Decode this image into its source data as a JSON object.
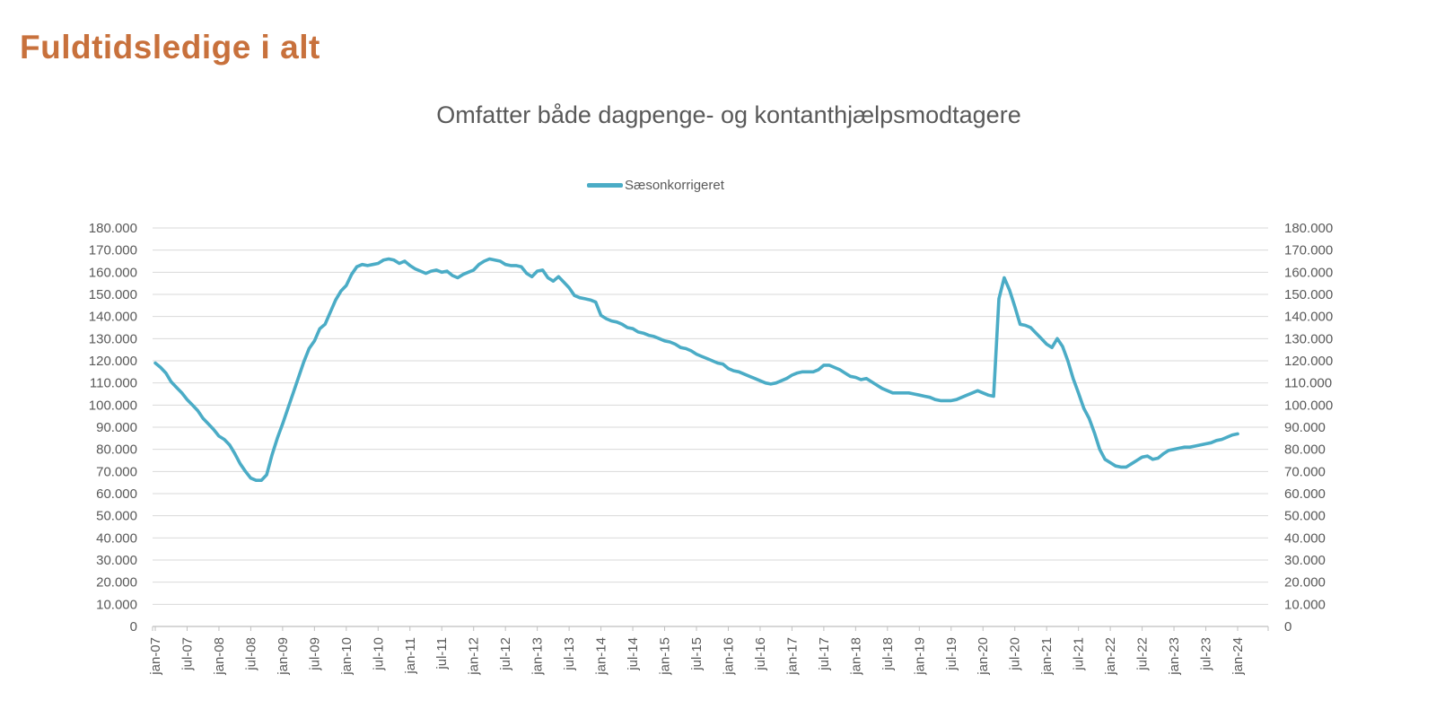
{
  "page": {
    "title": "Fuldtidsledige i alt"
  },
  "chart": {
    "subtitle": "Omfatter både dagpenge- og kontanthjælpsmodtagere",
    "legend": {
      "label": "Sæsonkorrigeret",
      "color": "#4BACC6"
    }
  },
  "chart_data": {
    "type": "line",
    "title": "Omfatter både dagpenge- og kontanthjælpsmodtagere",
    "xlabel": "",
    "ylabel": "",
    "ylim": [
      0,
      180000
    ],
    "y_tick_step": 10000,
    "y_axis_sides": "both",
    "grid": "horizontal",
    "legend_position": "top-center",
    "x_label_rotation": -90,
    "x_tick_labels": [
      "jan-07",
      "jul-07",
      "jan-08",
      "jul-08",
      "jan-09",
      "jul-09",
      "jan-10",
      "jul-10",
      "jan-11",
      "jul-11",
      "jan-12",
      "jul-12",
      "jan-13",
      "jul-13",
      "jan-14",
      "jul-14",
      "jan-15",
      "jul-15",
      "jan-16",
      "jul-16",
      "jan-17",
      "jul-17",
      "jan-18",
      "jul-18",
      "jan-19",
      "jul-19",
      "jan-20",
      "jul-20",
      "jan-21",
      "jul-21",
      "jan-22",
      "jul-22",
      "jan-23",
      "jul-23",
      "jan-24"
    ],
    "y_tick_labels": [
      "180.000",
      "170.000",
      "160.000",
      "150.000",
      "140.000",
      "130.000",
      "120.000",
      "110.000",
      "100.000",
      "90.000",
      "80.000",
      "70.000",
      "60.000",
      "50.000",
      "40.000",
      "30.000",
      "20.000",
      "10.000",
      "0"
    ],
    "colors": {
      "line": "#4BACC6",
      "text": "#595959",
      "grid": "#D9D9D9",
      "axis": "#BFBFBF",
      "title": "#C8713C"
    },
    "series": [
      {
        "name": "Sæsonkorrigeret",
        "color": "#4BACC6",
        "frequency": "monthly",
        "start_month": "jan-07",
        "end_month": "jan-24",
        "values": [
          119000,
          117000,
          114500,
          110500,
          108000,
          105500,
          102500,
          100000,
          97500,
          94000,
          91500,
          89000,
          86000,
          84500,
          82000,
          78000,
          73500,
          70000,
          67000,
          66000,
          66000,
          68500,
          77500,
          85000,
          91500,
          98500,
          105500,
          112500,
          119500,
          125500,
          129000,
          134500,
          136500,
          142000,
          147500,
          151500,
          154000,
          159000,
          162500,
          163500,
          163000,
          163500,
          164000,
          165500,
          166000,
          165500,
          164000,
          165000,
          163000,
          161500,
          160500,
          159500,
          160500,
          161000,
          160000,
          160500,
          158500,
          157500,
          159000,
          160000,
          161000,
          163500,
          165000,
          166000,
          165500,
          165000,
          163500,
          163000,
          163000,
          162500,
          159500,
          158000,
          160500,
          161000,
          157500,
          156000,
          158000,
          155500,
          153000,
          149500,
          148500,
          148000,
          147500,
          146500,
          140500,
          139000,
          138000,
          137500,
          136500,
          135000,
          134500,
          133000,
          132500,
          131500,
          131000,
          130000,
          129000,
          128500,
          127500,
          126000,
          125500,
          124500,
          123000,
          122000,
          121000,
          120000,
          119000,
          118500,
          116500,
          115500,
          115000,
          114000,
          113000,
          112000,
          111000,
          110000,
          109500,
          110000,
          111000,
          112000,
          113500,
          114500,
          115000,
          115000,
          115000,
          116000,
          118000,
          118000,
          117000,
          116000,
          114500,
          113000,
          112500,
          111500,
          112000,
          110500,
          109000,
          107500,
          106500,
          105500,
          105500,
          105500,
          105500,
          105000,
          104500,
          104000,
          103500,
          102500,
          102000,
          102000,
          102000,
          102500,
          103500,
          104500,
          105500,
          106500,
          105500,
          104500,
          104000,
          148000,
          157500,
          152000,
          144500,
          136500,
          136000,
          135000,
          132500,
          130000,
          127500,
          126000,
          130000,
          126500,
          120000,
          112000,
          105500,
          98500,
          94000,
          87500,
          80000,
          75500,
          74000,
          72500,
          72000,
          72000,
          73500,
          75000,
          76500,
          77000,
          75500,
          76000,
          78000,
          79500,
          80000,
          80500,
          81000,
          81000,
          81500,
          82000,
          82500,
          83000,
          84000,
          84500,
          85500,
          86500,
          87000
        ]
      }
    ]
  }
}
